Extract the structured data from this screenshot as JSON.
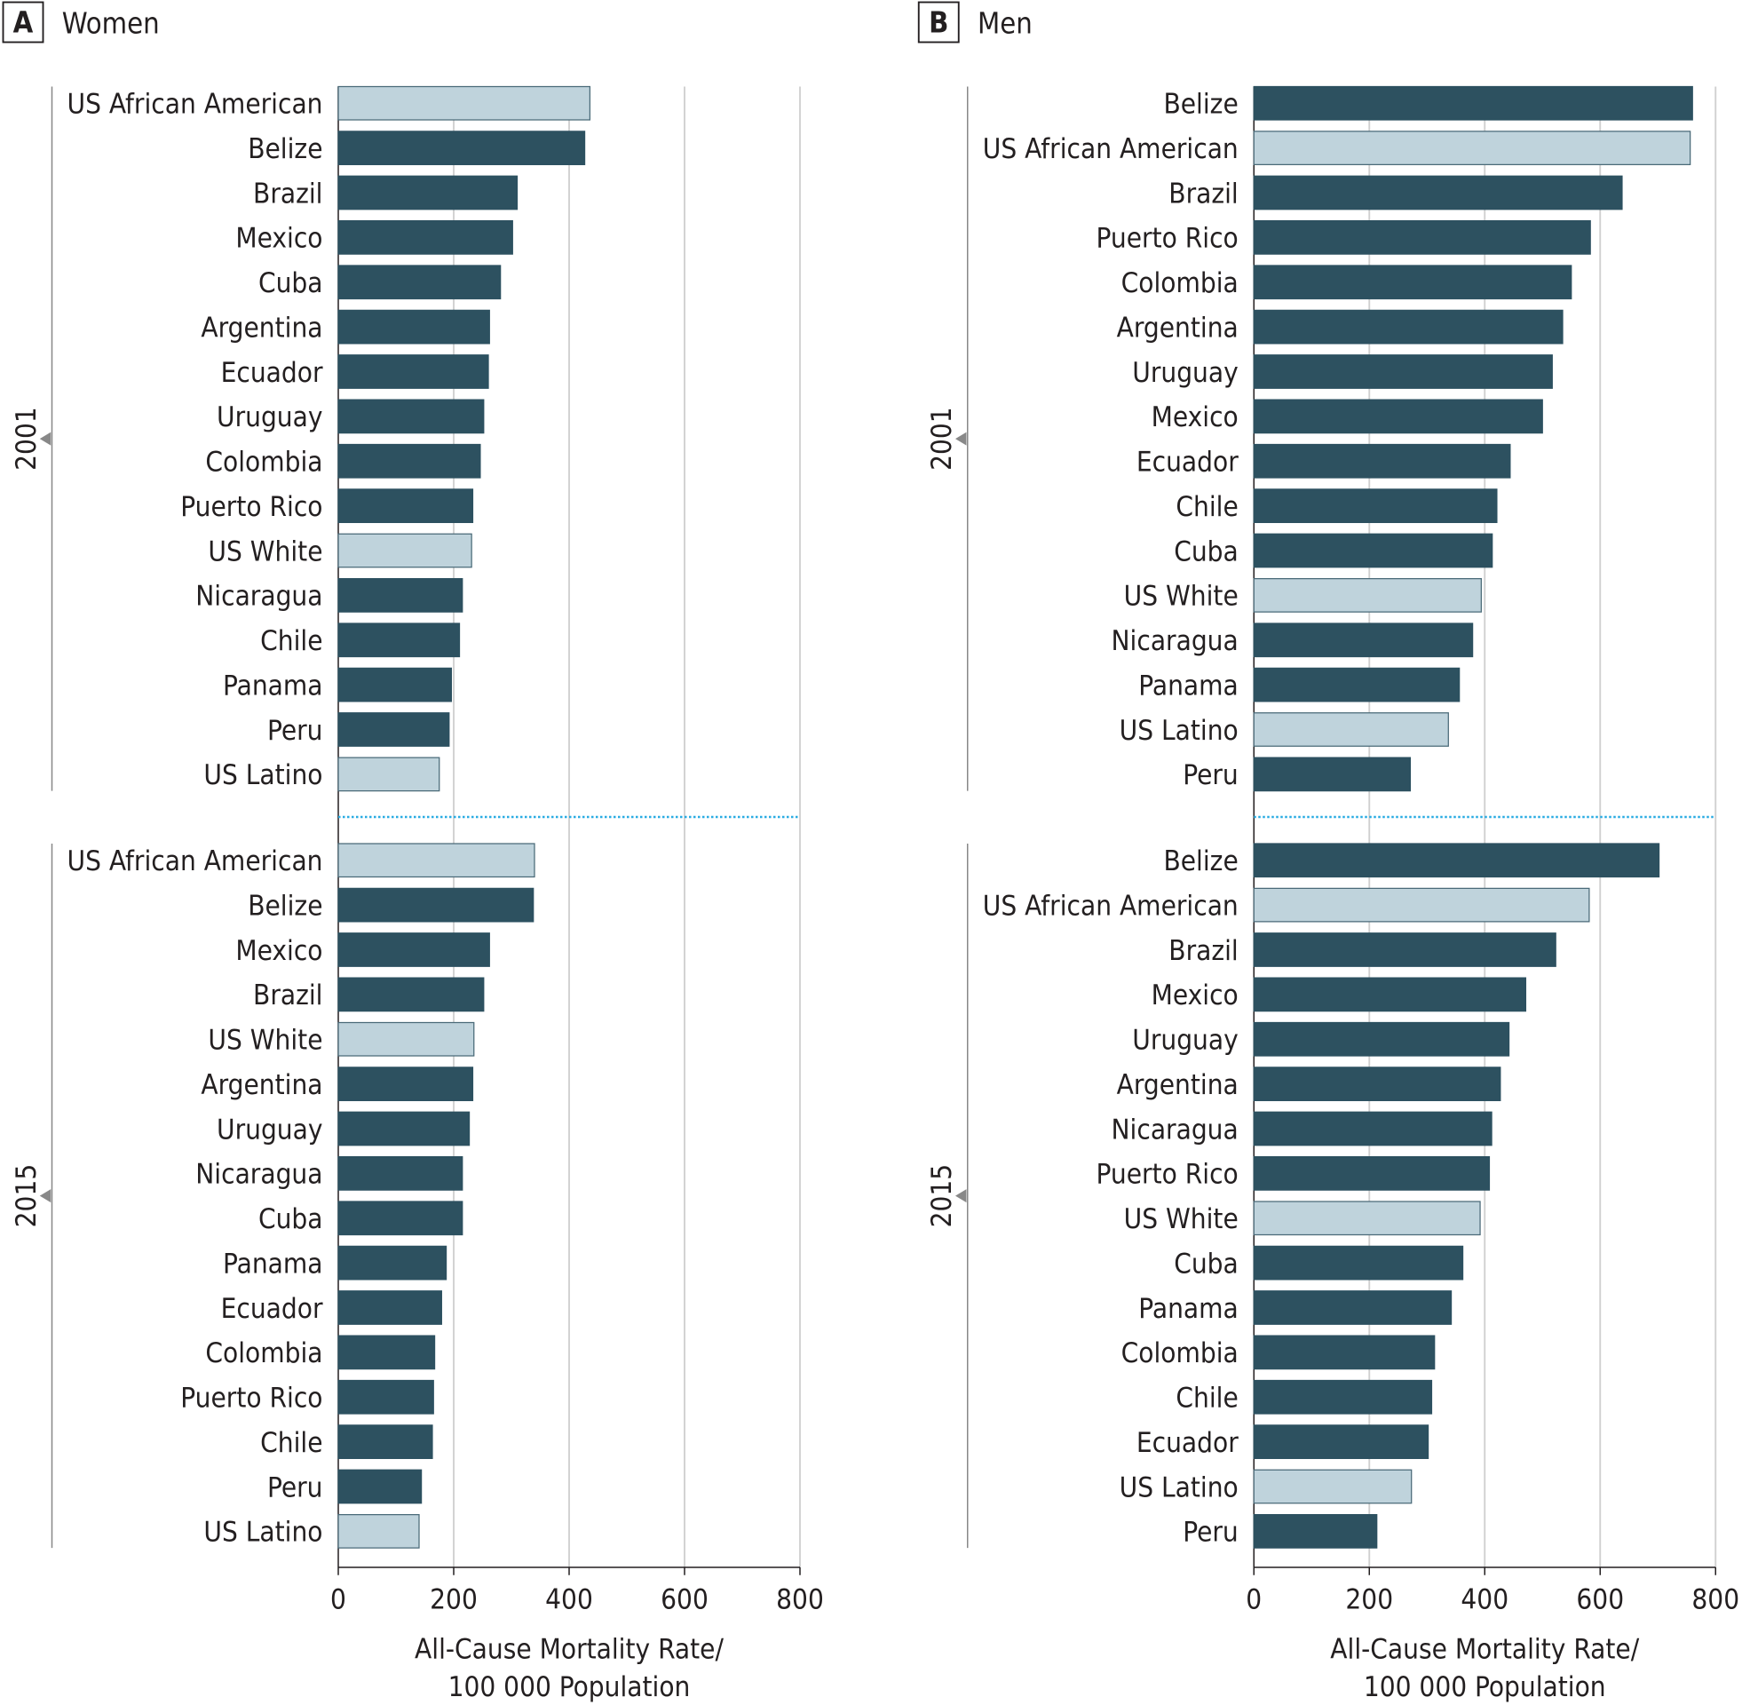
{
  "colors": {
    "country": "#2d5160",
    "us_group": "#bfd3dc",
    "grid": "#d0d0d0",
    "separator": "#29abe2",
    "axis": "#231f20"
  },
  "chart_data": [
    {
      "type": "bar",
      "panel_letter": "A",
      "title": "Women",
      "xlabel_line1": "All-Cause Mortality Rate/",
      "xlabel_line2": "100 000 Population",
      "xlim": [
        0,
        800
      ],
      "ticks": [
        "0",
        "200",
        "400",
        "600",
        "800"
      ],
      "tick_values": [
        0,
        200,
        400,
        600,
        800
      ],
      "grid": true,
      "groups": [
        {
          "year": "2001",
          "categories": [
            "US African American",
            "Belize",
            "Brazil",
            "Mexico",
            "Cuba",
            "Argentina",
            "Ecuador",
            "Uruguay",
            "Colombia",
            "Puerto Rico",
            "US White",
            "Nicaragua",
            "Chile",
            "Panama",
            "Peru",
            "US Latino"
          ],
          "values": [
            436,
            427,
            310,
            302,
            281,
            262,
            260,
            252,
            246,
            233,
            231,
            215,
            210,
            196,
            192,
            175
          ]
        },
        {
          "year": "2015",
          "categories": [
            "US African American",
            "Belize",
            "Mexico",
            "Brazil",
            "US White",
            "Argentina",
            "Uruguay",
            "Nicaragua",
            "Cuba",
            "Panama",
            "Ecuador",
            "Colombia",
            "Puerto Rico",
            "Chile",
            "Peru",
            "US Latino"
          ],
          "values": [
            340,
            338,
            262,
            252,
            235,
            233,
            227,
            215,
            215,
            187,
            179,
            167,
            165,
            163,
            144,
            140
          ]
        }
      ]
    },
    {
      "type": "bar",
      "panel_letter": "B",
      "title": "Men",
      "xlabel_line1": "All-Cause Mortality Rate/",
      "xlabel_line2": "100 000 Population",
      "xlim": [
        0,
        800
      ],
      "ticks": [
        "0",
        "200",
        "400",
        "600",
        "800"
      ],
      "tick_values": [
        0,
        200,
        400,
        600,
        800
      ],
      "grid": true,
      "groups": [
        {
          "year": "2001",
          "categories": [
            "Belize",
            "US African American",
            "Brazil",
            "Puerto Rico",
            "Colombia",
            "Argentina",
            "Uruguay",
            "Mexico",
            "Ecuador",
            "Chile",
            "Cuba",
            "US White",
            "Nicaragua",
            "Panama",
            "US Latino",
            "Peru"
          ],
          "values": [
            760,
            756,
            638,
            583,
            550,
            535,
            517,
            500,
            444,
            421,
            413,
            394,
            379,
            356,
            337,
            271
          ]
        },
        {
          "year": "2015",
          "categories": [
            "Belize",
            "US African American",
            "Brazil",
            "Mexico",
            "Uruguay",
            "Argentina",
            "Nicaragua",
            "Puerto Rico",
            "US White",
            "Cuba",
            "Panama",
            "Colombia",
            "Chile",
            "Ecuador",
            "US Latino",
            "Peru"
          ],
          "values": [
            702,
            581,
            523,
            471,
            442,
            427,
            412,
            408,
            392,
            362,
            342,
            313,
            308,
            302,
            273,
            213
          ]
        }
      ]
    }
  ]
}
